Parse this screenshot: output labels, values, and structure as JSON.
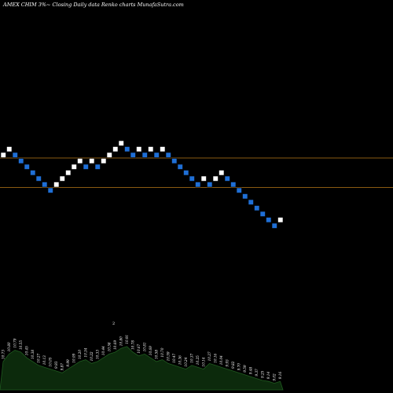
{
  "header": {
    "caption": "AMEX  CHIM 3%~  Closing Daily data  Renko  charts MunafaSutra.com"
  },
  "colors": {
    "background": "#000000",
    "up_brick": "#ffffff",
    "down_brick": "#1f6fd6",
    "reference_line": "#8a5a12",
    "volume_fill": "#0c2a0c",
    "volume_edge": "#1f5a1f",
    "text": "#ffffff"
  },
  "chart_data": {
    "type": "renko",
    "reference_lines": [
      57,
      52
    ],
    "bricks": [
      {
        "dir": "up",
        "level": 57
      },
      {
        "dir": "up",
        "level": 58
      },
      {
        "dir": "down",
        "level": 57
      },
      {
        "dir": "down",
        "level": 56
      },
      {
        "dir": "down",
        "level": 55
      },
      {
        "dir": "down",
        "level": 54
      },
      {
        "dir": "down",
        "level": 53
      },
      {
        "dir": "down",
        "level": 52
      },
      {
        "dir": "down",
        "level": 51
      },
      {
        "dir": "up",
        "level": 52
      },
      {
        "dir": "up",
        "level": 53
      },
      {
        "dir": "up",
        "level": 54
      },
      {
        "dir": "up",
        "level": 55
      },
      {
        "dir": "up",
        "level": 56
      },
      {
        "dir": "down",
        "level": 55
      },
      {
        "dir": "up",
        "level": 56
      },
      {
        "dir": "down",
        "level": 55
      },
      {
        "dir": "up",
        "level": 56
      },
      {
        "dir": "up",
        "level": 57
      },
      {
        "dir": "up",
        "level": 58
      },
      {
        "dir": "up",
        "level": 59
      },
      {
        "dir": "down",
        "level": 58
      },
      {
        "dir": "down",
        "level": 57
      },
      {
        "dir": "up",
        "level": 58
      },
      {
        "dir": "down",
        "level": 57
      },
      {
        "dir": "up",
        "level": 58
      },
      {
        "dir": "down",
        "level": 57
      },
      {
        "dir": "up",
        "level": 58
      },
      {
        "dir": "down",
        "level": 57
      },
      {
        "dir": "down",
        "level": 56
      },
      {
        "dir": "down",
        "level": 55
      },
      {
        "dir": "down",
        "level": 54
      },
      {
        "dir": "down",
        "level": 53
      },
      {
        "dir": "down",
        "level": 52
      },
      {
        "dir": "up",
        "level": 53
      },
      {
        "dir": "down",
        "level": 52
      },
      {
        "dir": "up",
        "level": 53
      },
      {
        "dir": "up",
        "level": 54
      },
      {
        "dir": "down",
        "level": 53
      },
      {
        "dir": "down",
        "level": 52
      },
      {
        "dir": "down",
        "level": 51
      },
      {
        "dir": "down",
        "level": 50
      },
      {
        "dir": "down",
        "level": 49
      },
      {
        "dir": "down",
        "level": 48
      },
      {
        "dir": "down",
        "level": 47
      },
      {
        "dir": "down",
        "level": 46
      },
      {
        "dir": "down",
        "level": 45
      },
      {
        "dir": "up",
        "level": 46
      }
    ],
    "volume": [
      30,
      38,
      42,
      40,
      34,
      30,
      26,
      24,
      22,
      20,
      18,
      22,
      26,
      30,
      32,
      28,
      30,
      34,
      38,
      40,
      44,
      46,
      40,
      36,
      38,
      34,
      30,
      32,
      28,
      26,
      24,
      22,
      26,
      24,
      22,
      28,
      26,
      24,
      22,
      20,
      18,
      16,
      14,
      12,
      10,
      9,
      7,
      9
    ],
    "volume_labels": [
      "10.73",
      "10.80",
      "10.79",
      "10.55",
      "10.45",
      "10.38",
      "10.27",
      "10.13",
      "10.05",
      "9.93",
      "9.87",
      "9.99",
      "10.09",
      "10.20",
      "10.34",
      "10.22",
      "10.33",
      "10.44",
      "10.58",
      "10.69",
      "10.80",
      "10.91",
      "10.78",
      "10.67",
      "10.81",
      "10.69",
      "10.58",
      "10.70",
      "10.59",
      "10.47",
      "10.36",
      "10.24",
      "10.37",
      "10.25",
      "10.14",
      "10.27",
      "10.16",
      "10.04",
      "9.93",
      "9.82",
      "9.70",
      "9.59",
      "9.48",
      "9.37",
      "9.25",
      "9.14",
      "9.02",
      "9.16"
    ],
    "tiny_mark": "2"
  }
}
